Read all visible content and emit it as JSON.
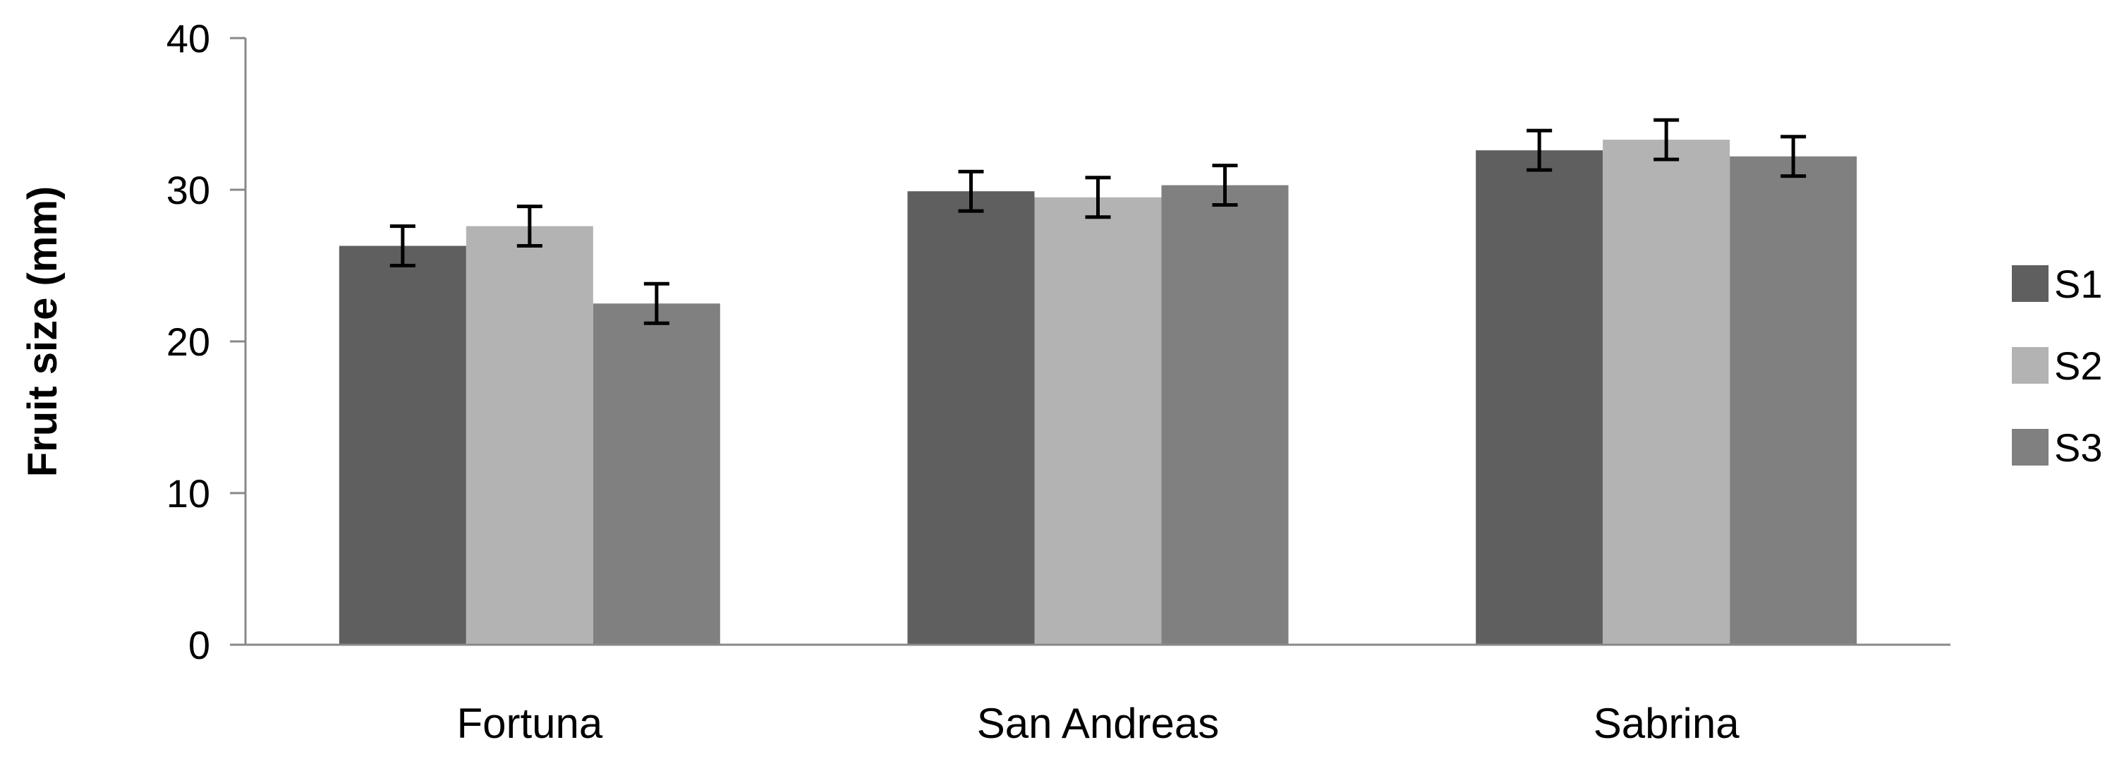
{
  "chart_data": {
    "type": "bar",
    "title": "",
    "xlabel": "",
    "ylabel": "Fruit size (mm)",
    "ylim": [
      0,
      40
    ],
    "yticks": [
      0,
      10,
      20,
      30,
      40
    ],
    "categories": [
      "Fortuna",
      "San Andreas",
      "Sabrina"
    ],
    "series": [
      {
        "name": "S1",
        "color": "#5f5f5f",
        "values": [
          26.3,
          29.9,
          32.6
        ],
        "errors": [
          1.3,
          1.3,
          1.3
        ]
      },
      {
        "name": "S2",
        "color": "#b3b3b3",
        "values": [
          27.6,
          29.5,
          33.3
        ],
        "errors": [
          1.3,
          1.3,
          1.3
        ]
      },
      {
        "name": "S3",
        "color": "#808080",
        "values": [
          22.5,
          30.3,
          32.2
        ],
        "errors": [
          1.3,
          1.3,
          1.3
        ]
      }
    ],
    "grid": false,
    "legend": "right",
    "error_bars": true
  }
}
